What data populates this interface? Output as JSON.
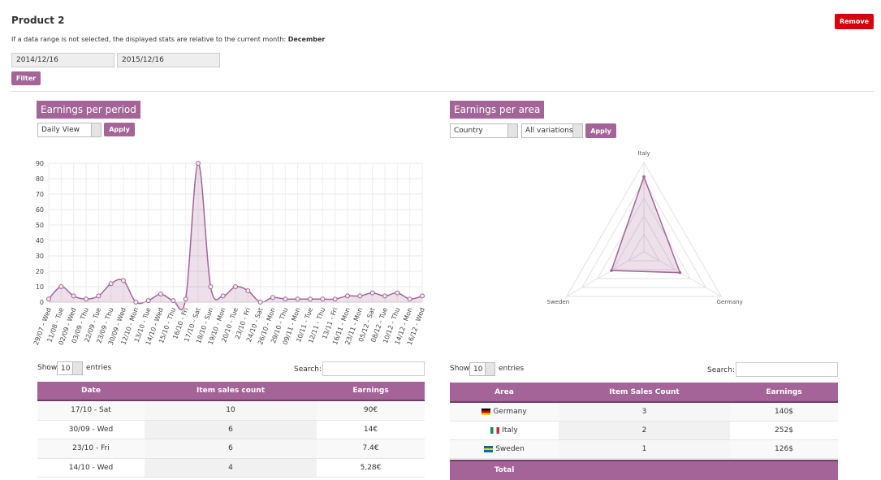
{
  "header": {
    "title": "Product 2",
    "remove": "Remove",
    "note": "If a data range is not selected, the displayed stats are relative to the current month:",
    "month": "December"
  },
  "filters": {
    "from": "2014/12/16",
    "to": "2015/12/16",
    "button": "Filter"
  },
  "period": {
    "title": "Earnings per period",
    "view": "Daily View",
    "apply": "Apply"
  },
  "area": {
    "title": "Earnings per area",
    "group": "Country",
    "variations": "All variations",
    "apply": "Apply"
  },
  "chart_data": [
    {
      "type": "line",
      "color": "#a46497",
      "grid": true,
      "categories": [
        "29/07 - Wed",
        "11/08 - Tue",
        "02/09 - Wed",
        "03/09 - Thu",
        "22/09 - Tue",
        "23/09 - Thu",
        "30/09 - Wed",
        "12/10 - Mon",
        "13/10 - Tue",
        "14/10 - Wed",
        "15/10 - Thu",
        "16/10 - Fri",
        "17/10 - Sat",
        "18/10 - Sun",
        "19/10 - Mon",
        "20/10 - Tue",
        "23/10 - Fri",
        "24/10 - Sat",
        "26/10 - Mon",
        "29/10 - Thu",
        "09/11 - Mon",
        "10/11 - Tue",
        "12/11 - Thu",
        "13/11 - Fri",
        "16/11 - Mon",
        "23/11 - Mon",
        "05/12 - Sat",
        "08/12 - Tue",
        "10/12 - Thu",
        "14/12 - Mon",
        "16/12 - Wed"
      ],
      "values": [
        2,
        10,
        4,
        2,
        4,
        12,
        14,
        0,
        1,
        5.28,
        1,
        2,
        90,
        10,
        4,
        10,
        7.4,
        0,
        3,
        2,
        2,
        2,
        2,
        2,
        4,
        4,
        6,
        4,
        6,
        2,
        4
      ],
      "ylim": [
        0,
        90
      ],
      "yticks": [
        0,
        10,
        20,
        30,
        40,
        50,
        60,
        70,
        80,
        90
      ]
    },
    {
      "type": "radar",
      "color": "#a46497",
      "categories": [
        "Italy",
        "Germany",
        "Sweden"
      ],
      "values": [
        252,
        140,
        126
      ],
      "rlim": [
        0,
        300
      ]
    }
  ],
  "period_table": {
    "show": "Show",
    "length": "10",
    "entries": "entries",
    "search": "Search:",
    "columns": [
      "Date",
      "Item sales count",
      "Earnings"
    ],
    "rows": [
      [
        "17/10 - Sat",
        10,
        "90€"
      ],
      [
        "30/09 - Wed",
        6,
        "14€"
      ],
      [
        "23/10 - Fri",
        6,
        "7.4€"
      ],
      [
        "14/10 - Wed",
        4,
        "5,28€"
      ]
    ]
  },
  "area_table": {
    "show": "Show",
    "length": "10",
    "entries": "entries",
    "search": "Search:",
    "columns": [
      "Area",
      "Item Sales Count",
      "Earnings"
    ],
    "rows": [
      [
        "Germany",
        3,
        "140$"
      ],
      [
        "Italy",
        2,
        "252$"
      ],
      [
        "Sweden",
        1,
        "126$"
      ]
    ],
    "total": "Total"
  }
}
